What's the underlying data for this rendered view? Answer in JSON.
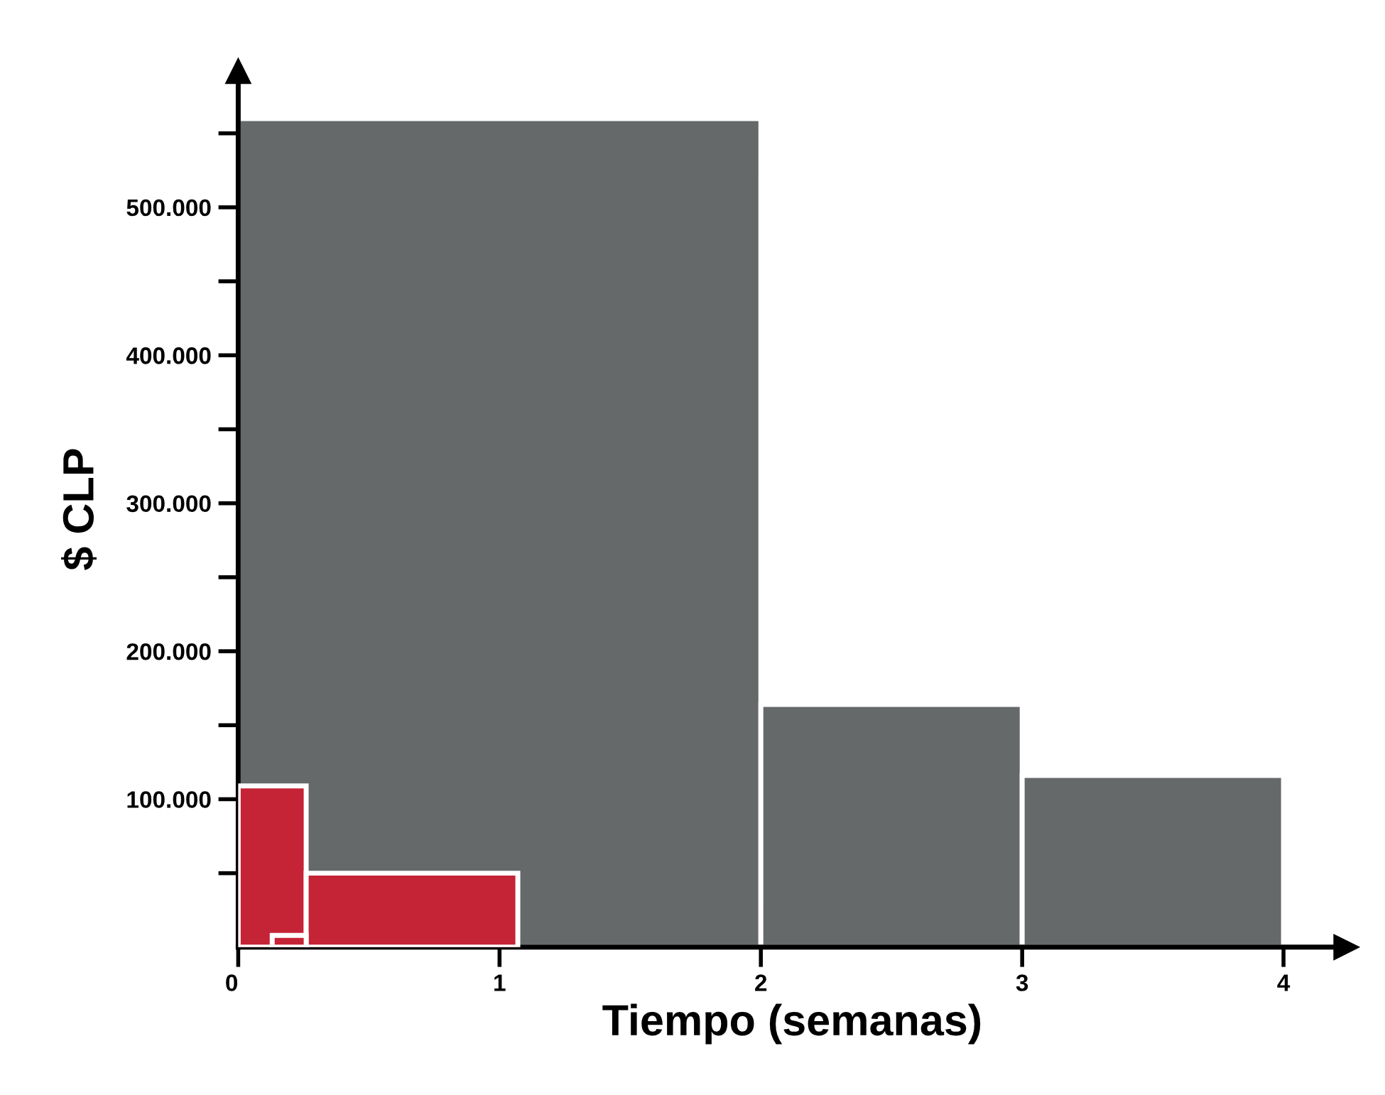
{
  "chart_data": [
    {
      "type": "histogram",
      "xlabel": "Tiempo (semanas)",
      "ylabel": "$ CLP",
      "bins": [
        0,
        2,
        3,
        4
      ],
      "values": [
        560000,
        164000,
        116000
      ],
      "color": "#656969",
      "xlim": [
        0,
        4.24
      ],
      "ylim": [
        0,
        592000
      ],
      "xticks": [
        0,
        1,
        2,
        3,
        4
      ],
      "yticks": [
        {
          "value": 50000,
          "label": null
        },
        {
          "value": 100000,
          "label": "100.000"
        },
        {
          "value": 150000,
          "label": null
        },
        {
          "value": 200000,
          "label": "200.000"
        },
        {
          "value": 250000,
          "label": null
        },
        {
          "value": 300000,
          "label": "300.000"
        },
        {
          "value": 350000,
          "label": null
        },
        {
          "value": 400000,
          "label": "400.000"
        },
        {
          "value": 450000,
          "label": null
        },
        {
          "value": 500000,
          "label": "500.000"
        },
        {
          "value": 550000,
          "label": null
        }
      ]
    },
    {
      "type": "histogram",
      "bins": [
        0,
        0.26,
        1.07
      ],
      "values": [
        109000,
        50000
      ],
      "color": "#c52336",
      "xlim": [
        0,
        4.24
      ],
      "ylim": [
        0,
        592000
      ],
      "tick_labels": false
    },
    {
      "type": "histogram",
      "bins": [
        0.13,
        0.26
      ],
      "values": [
        8000
      ],
      "color": "#c52336",
      "xlim": [
        0,
        4.24
      ],
      "ylim": [
        0,
        592000
      ],
      "tick_labels": false
    }
  ]
}
